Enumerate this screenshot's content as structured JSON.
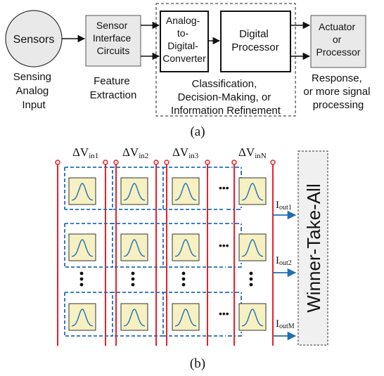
{
  "colors": {
    "rail": "#e8202a",
    "signal": "#1f6fb5",
    "cell_fill": "#f6f0c2",
    "box_fill": "#e9e9e9",
    "wta_fill": "#f0f0f0",
    "ink": "#111111"
  },
  "panel_a": {
    "sensors": "Sensors",
    "sensing_caption": [
      "Sensing",
      "Analog",
      "Input"
    ],
    "interface_box": [
      "Sensor",
      "Interface",
      "Circuits"
    ],
    "feature_caption": [
      "Feature",
      "Extraction"
    ],
    "adc_box": [
      "Analog-",
      "to-",
      "Digital-",
      "Converter"
    ],
    "processor_box": [
      "Digital",
      "Processor"
    ],
    "classification_caption": [
      "Classification,",
      "Decision-Making, or",
      "Information Refinement"
    ],
    "actuator_box": [
      "Actuator",
      "or",
      "Processor"
    ],
    "response_caption": [
      "Response,",
      "or more signal",
      "processing"
    ],
    "label": "(a)"
  },
  "panel_b": {
    "inputs": [
      {
        "delta": "ΔV",
        "sub": "in1"
      },
      {
        "delta": "ΔV",
        "sub": "in2"
      },
      {
        "delta": "ΔV",
        "sub": "in3"
      },
      {
        "delta": "ΔV",
        "sub": "inN"
      }
    ],
    "outputs": [
      {
        "main": "I",
        "sub": "out1"
      },
      {
        "main": "I",
        "sub": "out2"
      },
      {
        "main": "I",
        "sub": "outM"
      }
    ],
    "wta": "Winner-Take-All",
    "ellipsis": "•••",
    "label": "(b)"
  }
}
